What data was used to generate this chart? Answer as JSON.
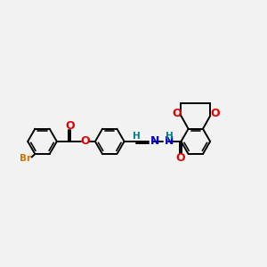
{
  "bg": "#f2f2f2",
  "bc": "#000000",
  "oc": "#e60000",
  "nc": "#0000cc",
  "brc": "#cc7700",
  "hc": "#008080",
  "lw": 1.4,
  "lw_dbl": 1.2,
  "r_hex": 0.55,
  "figsize": [
    3.0,
    3.0
  ],
  "dpi": 100,
  "xlim": [
    -0.3,
    9.8
  ],
  "ylim": [
    2.8,
    7.2
  ]
}
